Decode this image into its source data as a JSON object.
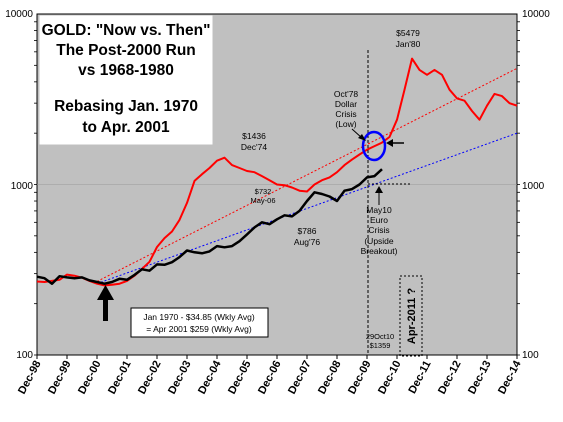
{
  "chart_data": {
    "type": "line",
    "title_lines": [
      "GOLD: \"Now vs. Then\"",
      "The Post-2000 Run",
      "vs 1968-1980",
      "",
      "Rebasing Jan. 1970",
      "to Apr. 2001"
    ],
    "y_scale": "log",
    "ylim": [
      100,
      10000
    ],
    "y_ticks": [
      "100",
      "1000",
      "10000"
    ],
    "x_range": [
      "1998-12",
      "2014-12"
    ],
    "x_ticks": [
      "Dec-98",
      "Dec-99",
      "Dec-00",
      "Dec-01",
      "Dec-02",
      "Dec-03",
      "Dec-04",
      "Dec-05",
      "Dec-06",
      "Dec-07",
      "Dec-08",
      "Dec-09",
      "Dec-10",
      "Dec-11",
      "Dec-12",
      "Dec-13",
      "Dec-14"
    ],
    "background": "#c0c0c0",
    "series": [
      {
        "color": "#ff0000",
        "x": [
          "1998-12",
          "1999-03",
          "1999-06",
          "1999-09",
          "1999-12",
          "2000-03",
          "2000-06",
          "2000-09",
          "2000-12",
          "2001-03",
          "2001-06",
          "2001-09",
          "2001-12",
          "2002-03",
          "2002-06",
          "2002-09",
          "2002-12",
          "2003-03",
          "2003-06",
          "2003-09",
          "2003-12",
          "2004-03",
          "2004-06",
          "2004-09",
          "2004-12",
          "2005-03",
          "2005-06",
          "2005-09",
          "2005-12",
          "2006-03",
          "2006-06",
          "2006-09",
          "2006-12",
          "2007-03",
          "2007-06",
          "2007-09",
          "2007-12",
          "2008-03",
          "2008-06",
          "2008-09",
          "2008-12",
          "2009-03",
          "2009-06",
          "2009-09",
          "2009-12",
          "2010-03",
          "2010-06",
          "2010-09",
          "2010-12",
          "2011-03",
          "2011-06",
          "2011-09",
          "2011-12",
          "2012-03",
          "2012-06",
          "2012-09",
          "2012-12",
          "2013-03",
          "2013-06",
          "2013-09",
          "2013-12",
          "2014-03",
          "2014-06",
          "2014-09",
          "2014-12"
        ],
        "values": [
          270,
          268,
          272,
          276,
          296,
          292,
          284,
          272,
          262,
          256,
          258,
          262,
          272,
          292,
          320,
          352,
          430,
          485,
          530,
          620,
          780,
          1050,
          1150,
          1250,
          1380,
          1436,
          1300,
          1250,
          1200,
          1180,
          1120,
          1060,
          1000,
          990,
          960,
          920,
          910,
          1000,
          1060,
          1100,
          1180,
          1300,
          1400,
          1500,
          1600,
          1680,
          1760,
          1900,
          2400,
          3600,
          5479,
          4700,
          4400,
          4700,
          4400,
          3600,
          3200,
          3100,
          2700,
          2400,
          2900,
          3400,
          3300,
          3000,
          2900
        ]
      },
      {
        "color": "#000000",
        "x": [
          "1998-12",
          "1999-03",
          "1999-06",
          "1999-09",
          "1999-12",
          "2000-03",
          "2000-06",
          "2000-09",
          "2000-12",
          "2001-03",
          "2001-06",
          "2001-09",
          "2001-12",
          "2002-03",
          "2002-06",
          "2002-09",
          "2002-12",
          "2003-03",
          "2003-06",
          "2003-09",
          "2003-12",
          "2004-03",
          "2004-06",
          "2004-09",
          "2004-12",
          "2005-03",
          "2005-06",
          "2005-09",
          "2005-12",
          "2006-03",
          "2006-06",
          "2006-09",
          "2006-12",
          "2007-03",
          "2007-06",
          "2007-09",
          "2007-12",
          "2008-03",
          "2008-06",
          "2008-09",
          "2008-12",
          "2009-03",
          "2009-06",
          "2009-09",
          "2009-12",
          "2010-03",
          "2010-06"
        ],
        "values": [
          288,
          282,
          262,
          290,
          285,
          282,
          285,
          274,
          268,
          262,
          268,
          280,
          276,
          295,
          318,
          312,
          340,
          338,
          350,
          375,
          410,
          400,
          395,
          405,
          435,
          428,
          435,
          465,
          510,
          560,
          600,
          585,
          625,
          660,
          650,
          700,
          800,
          900,
          880,
          850,
          800,
          920,
          940,
          1000,
          1100,
          1120,
          1230
        ]
      }
    ],
    "trendlines": [
      {
        "color": "#ff0000",
        "style": "dotted",
        "from": [
          "2000-12",
          270
        ],
        "to": [
          "2014-12",
          4800
        ]
      },
      {
        "color": "#0000ff",
        "style": "dotted",
        "from": [
          "2000-12",
          262
        ],
        "to": [
          "2014-12",
          2000
        ]
      }
    ],
    "annotations": {
      "peak_1980": [
        "$5479",
        "Jan'80"
      ],
      "peak_1974": [
        "$1436",
        "Dec'74"
      ],
      "may06": [
        "$732",
        "May-06"
      ],
      "aug76": [
        "$786",
        "Aug'76"
      ],
      "oct78": [
        "Oct'78",
        "Dollar",
        "Crisis",
        "(Low)"
      ],
      "may10": [
        "May10",
        "Euro",
        "Crisis",
        "(Upside",
        "Breakout)"
      ],
      "rebase_box": [
        "Jan 1970 - $34.85 (Wkly Avg)",
        "= Apr 2001 $259 (Wkly Avg)"
      ],
      "apr2011": "Apr-2011 ?",
      "oct10": [
        "29Oct10",
        "$1359"
      ]
    }
  }
}
